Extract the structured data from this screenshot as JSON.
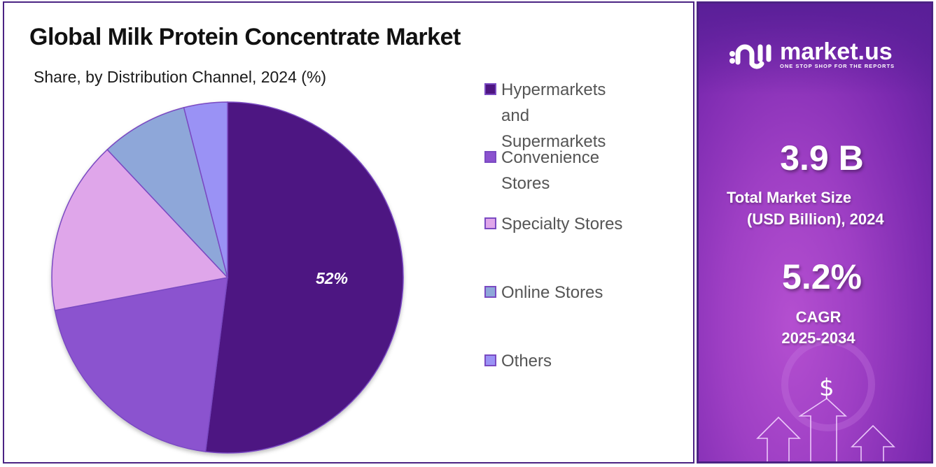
{
  "header": {
    "title": "Global Milk Protein Concentrate Market",
    "subtitle": "Share, by Distribution Channel, 2024 (%)"
  },
  "legend": {
    "items": [
      {
        "label": "Hypermarkets and Supermarkets",
        "lines": [
          "Hypermarkets",
          "and",
          "Supermarkets"
        ],
        "color": "#4e1582"
      },
      {
        "label": "Convenience Stores",
        "lines": [
          "Convenience",
          "Stores"
        ],
        "color": "#8b52cf"
      },
      {
        "label": "Specialty Stores",
        "lines": [
          "Specialty Stores"
        ],
        "color": "#dfa6ea"
      },
      {
        "label": "Online Stores",
        "lines": [
          "Online Stores"
        ],
        "color": "#8ea7d9"
      },
      {
        "label": "Others",
        "lines": [
          "Others"
        ],
        "color": "#9a92f5"
      }
    ]
  },
  "pie_label": "52%",
  "sidebar": {
    "brand_name": "market.us",
    "brand_tagline": "ONE STOP SHOP FOR THE REPORTS",
    "market_size_value": "3.9 B",
    "market_size_label_1": "Total Market Size",
    "market_size_label_2": "(USD Billion), 2024",
    "cagr_value": "5.2%",
    "cagr_label_1": "CAGR",
    "cagr_label_2": "2025-2034",
    "dollar_symbol": "$"
  },
  "chart_data": {
    "type": "pie",
    "title": "Global Milk Protein Concentrate Market",
    "subtitle": "Share, by Distribution Channel, 2024 (%)",
    "categories": [
      "Hypermarkets and Supermarkets",
      "Convenience Stores",
      "Specialty Stores",
      "Online Stores",
      "Others"
    ],
    "values": [
      52,
      20,
      16,
      8,
      4
    ],
    "colors": [
      "#4e1582",
      "#8b52cf",
      "#dfa6ea",
      "#8ea7d9",
      "#9a92f5"
    ],
    "data_labels": {
      "Hypermarkets and Supermarkets": "52%"
    },
    "legend_position": "right",
    "start_angle": "12 o'clock, clockwise"
  }
}
